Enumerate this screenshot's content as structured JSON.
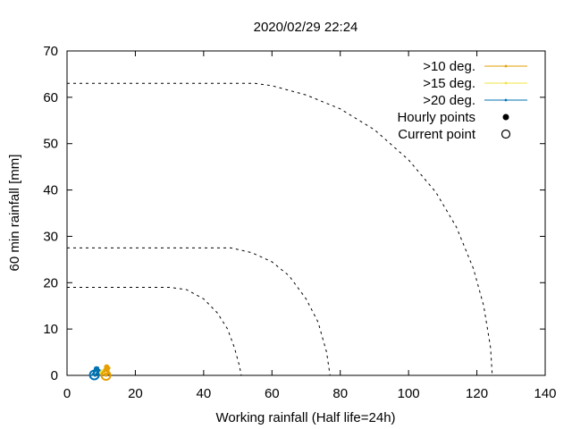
{
  "chart_data": {
    "type": "line",
    "title": "2020/02/29 22:24",
    "xlabel": "Working rainfall (Half life=24h)",
    "ylabel": "60 min rainfall [mm]",
    "xlim": [
      0,
      140
    ],
    "ylim": [
      0,
      70
    ],
    "xticks": [
      0,
      20,
      40,
      60,
      80,
      100,
      120,
      140
    ],
    "yticks": [
      0,
      10,
      20,
      30,
      40,
      50,
      60,
      70
    ],
    "grid": false,
    "legend_position": "top-right",
    "threshold_curves": [
      {
        "name": "",
        "style": "dashed",
        "color": "#000000",
        "x": [
          0,
          30,
          35,
          40,
          44,
          47,
          49,
          50.5,
          51
        ],
        "y": [
          19,
          19,
          18.5,
          16.5,
          13.5,
          10,
          6,
          2,
          0
        ]
      },
      {
        "name": "",
        "style": "dashed",
        "color": "#000000",
        "x": [
          0,
          48,
          54,
          60,
          65,
          70,
          73.5,
          76,
          77
        ],
        "y": [
          27.5,
          27.5,
          26.5,
          24.5,
          21.5,
          16.5,
          11.5,
          5,
          0
        ]
      },
      {
        "name": "",
        "style": "dashed",
        "color": "#000000",
        "x": [
          0,
          55,
          60,
          70,
          80,
          90,
          100,
          108,
          114,
          119,
          122,
          124,
          124.5
        ],
        "y": [
          63,
          63,
          62.5,
          60.5,
          57.5,
          53,
          46.5,
          39.5,
          32,
          23,
          15,
          6,
          0
        ]
      }
    ],
    "series": [
      {
        "name": ">10 deg.",
        "color": "#e69f00",
        "x": [
          10.5,
          11.0,
          11.8,
          12.3,
          12.0,
          11.2,
          10.8,
          11.5,
          12.2,
          11.4
        ],
        "y": [
          0.3,
          1.2,
          2.0,
          1.6,
          0.6,
          0.2,
          0.8,
          1.4,
          0.4,
          0.0
        ]
      },
      {
        "name": ">15 deg.",
        "color": "#f0e442",
        "x": [
          9.8,
          10.2,
          10.6
        ],
        "y": [
          0.5,
          1.0,
          0.6
        ]
      },
      {
        "name": ">20 deg.",
        "color": "#0072b2",
        "x": [
          7.6,
          8.0,
          8.4,
          9.0,
          9.4,
          8.8,
          8.2,
          7.8
        ],
        "y": [
          0.2,
          0.9,
          1.4,
          1.6,
          1.1,
          0.4,
          0.0,
          0.3
        ]
      }
    ],
    "hourly_points": [
      {
        "x": 8.6,
        "y": 1.4,
        "color": "#0072b2"
      },
      {
        "x": 11.6,
        "y": 1.8,
        "color": "#e69f00"
      }
    ],
    "current_points": [
      {
        "x": 8.0,
        "y": 0.1,
        "color": "#0072b2"
      },
      {
        "x": 11.4,
        "y": 0.0,
        "color": "#e69f00"
      }
    ],
    "legend": [
      {
        "label": ">10 deg.",
        "kind": "line",
        "color": "#e69f00"
      },
      {
        "label": ">15 deg.",
        "kind": "line",
        "color": "#f0e442"
      },
      {
        "label": ">20 deg.",
        "kind": "line",
        "color": "#0072b2"
      },
      {
        "label": "Hourly points",
        "kind": "filled-circle",
        "color": "#000000"
      },
      {
        "label": "Current point",
        "kind": "open-circle",
        "color": "#000000"
      }
    ]
  }
}
